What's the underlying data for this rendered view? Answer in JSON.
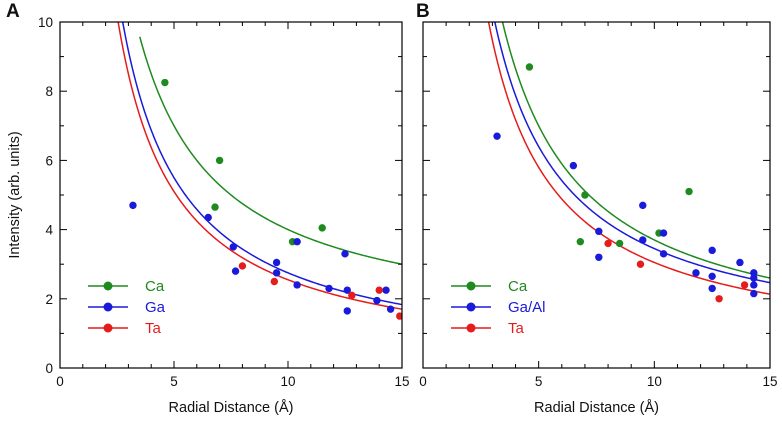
{
  "chart_data": [
    {
      "type": "scatter",
      "panel_label": "A",
      "xlabel": "Radial Distance (Å)",
      "ylabel": "Intensity (arb. units)",
      "xlim": [
        0,
        15
      ],
      "ylim": [
        0,
        10
      ],
      "x_ticks": [
        "0",
        "5",
        "10",
        "15"
      ],
      "y_ticks": [
        "0",
        "2",
        "4",
        "6",
        "8",
        "10"
      ],
      "legend_position": "bottom-left",
      "series": [
        {
          "name": "Ca",
          "color": "#1f8a1f",
          "points": [
            [
              4.6,
              8.25
            ],
            [
              6.8,
              4.65
            ],
            [
              7.0,
              6.0
            ],
            [
              10.2,
              3.65
            ],
            [
              11.5,
              4.05
            ]
          ],
          "fit": {
            "a": 30.0,
            "b": 1.0,
            "x_min": 3.5,
            "x_max": 15
          }
        },
        {
          "name": "Ga",
          "color": "#1a1adb",
          "points": [
            [
              3.2,
              4.7
            ],
            [
              6.5,
              4.35
            ],
            [
              7.6,
              3.5
            ],
            [
              7.7,
              2.8
            ],
            [
              9.5,
              3.05
            ],
            [
              9.5,
              2.75
            ],
            [
              10.4,
              3.65
            ],
            [
              10.4,
              2.4
            ],
            [
              11.8,
              2.3
            ],
            [
              12.5,
              3.3
            ],
            [
              12.6,
              2.25
            ],
            [
              12.6,
              1.65
            ],
            [
              13.9,
              1.95
            ],
            [
              14.3,
              2.25
            ],
            [
              14.5,
              1.7
            ]
          ],
          "fit": {
            "a": 27.5,
            "b": 0.0,
            "x_min": 2.5,
            "x_max": 15
          }
        },
        {
          "name": "Ta",
          "color": "#e61c1c",
          "points": [
            [
              8.0,
              2.95
            ],
            [
              9.4,
              2.5
            ],
            [
              12.8,
              2.1
            ],
            [
              14.0,
              2.25
            ],
            [
              14.9,
              1.5
            ]
          ],
          "fit": {
            "a": 25.5,
            "b": 0.0,
            "x_min": 2.5,
            "x_max": 15
          }
        }
      ]
    },
    {
      "type": "scatter",
      "panel_label": "B",
      "xlabel": "Radial Distance (Å)",
      "ylabel": "",
      "xlim": [
        0,
        15
      ],
      "ylim": [
        0,
        10
      ],
      "x_ticks": [
        "0",
        "5",
        "10",
        "15"
      ],
      "y_ticks": [],
      "legend_position": "bottom-left",
      "series": [
        {
          "name": "Ca",
          "color": "#1f8a1f",
          "points": [
            [
              4.6,
              8.7
            ],
            [
              6.8,
              3.65
            ],
            [
              7.0,
              5.0
            ],
            [
              8.5,
              3.6
            ],
            [
              10.2,
              3.9
            ],
            [
              11.5,
              5.1
            ]
          ],
          "fit": {
            "a": 33.0,
            "b": 0.4,
            "x_min": 2.8,
            "x_max": 15
          }
        },
        {
          "name": "Ga/Al",
          "color": "#1a1adb",
          "points": [
            [
              3.2,
              6.7
            ],
            [
              6.5,
              5.85
            ],
            [
              7.6,
              3.95
            ],
            [
              7.6,
              3.2
            ],
            [
              9.5,
              4.7
            ],
            [
              9.5,
              3.7
            ],
            [
              10.4,
              3.9
            ],
            [
              10.4,
              3.3
            ],
            [
              11.8,
              2.75
            ],
            [
              12.5,
              3.4
            ],
            [
              12.5,
              2.65
            ],
            [
              12.5,
              2.3
            ],
            [
              13.7,
              3.05
            ],
            [
              14.3,
              2.75
            ],
            [
              14.3,
              2.6
            ],
            [
              14.3,
              2.4
            ],
            [
              14.3,
              2.15
            ]
          ],
          "fit": {
            "a": 29.5,
            "b": 0.5,
            "x_min": 2.8,
            "x_max": 15
          }
        },
        {
          "name": "Ta",
          "color": "#e61c1c",
          "points": [
            [
              8.0,
              3.6
            ],
            [
              9.4,
              3.0
            ],
            [
              12.8,
              2.0
            ],
            [
              13.9,
              2.4
            ]
          ],
          "fit": {
            "a": 27.5,
            "b": 0.3,
            "x_min": 2.5,
            "x_max": 15
          }
        }
      ]
    }
  ]
}
